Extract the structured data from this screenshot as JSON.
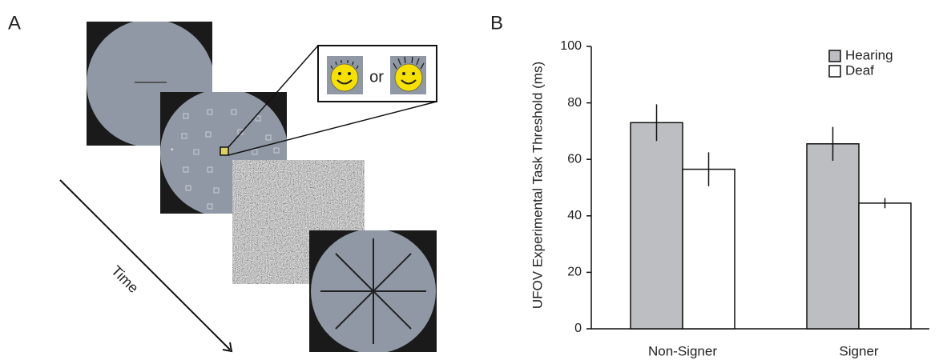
{
  "figure": {
    "panel_a_label": "A",
    "panel_b_label": "B",
    "time_label": "Time",
    "or_label": "or"
  },
  "chart_data": {
    "type": "bar",
    "ylabel": "UFOV Experimental Task Threshold (ms)",
    "categories": [
      "Non-Signer",
      "Signer"
    ],
    "series": [
      {
        "name": "Hearing",
        "color": "#bdbec1",
        "values": [
          73,
          65.5
        ],
        "errors": [
          6.5,
          6
        ]
      },
      {
        "name": "Deaf",
        "color": "#ffffff",
        "values": [
          56.5,
          44.5
        ],
        "errors": [
          6,
          1.8
        ]
      }
    ],
    "ylim": [
      0,
      100
    ],
    "yticks": [
      0,
      20,
      40,
      60,
      80,
      100
    ],
    "grid": false,
    "legend": "upper right"
  }
}
